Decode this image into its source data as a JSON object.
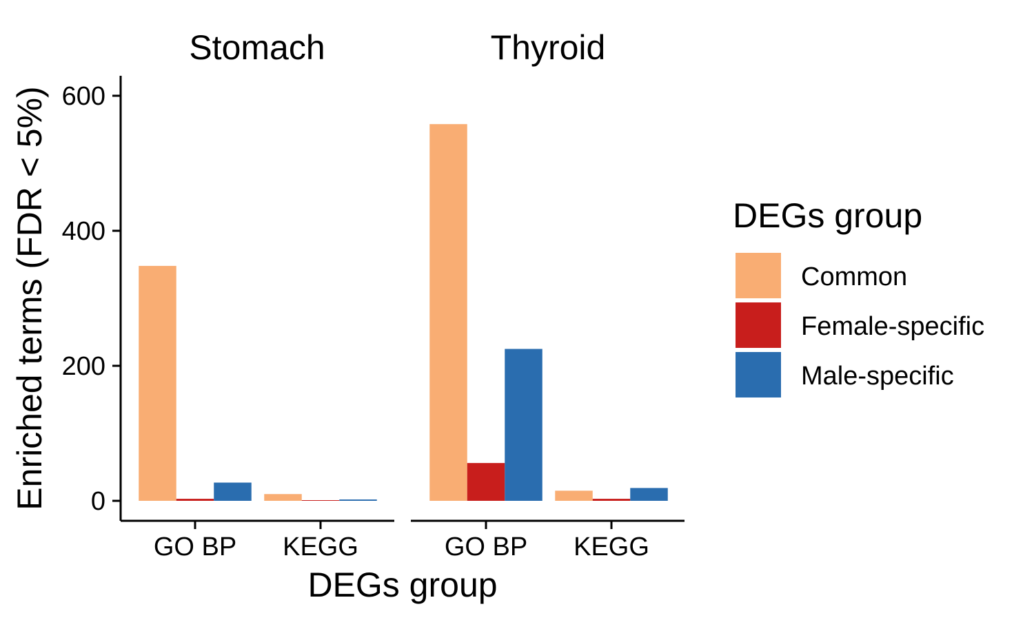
{
  "chart_data": {
    "type": "bar",
    "facets": [
      "Stomach",
      "Thyroid"
    ],
    "categories": [
      "GO BP",
      "KEGG"
    ],
    "xlabel": "DEGs group",
    "ylabel": "Enriched terms (FDR < 5%)",
    "ylim": [
      -30,
      630
    ],
    "yticks": [
      0,
      200,
      400,
      600
    ],
    "grid": false,
    "legend": {
      "title": "DEGs group",
      "placement": "right"
    },
    "series": [
      {
        "name": "Common",
        "color": "#F9AD73",
        "values": {
          "Stomach": [
            348,
            10
          ],
          "Thyroid": [
            558,
            15
          ]
        }
      },
      {
        "name": "Female-specific",
        "color": "#C81E1C",
        "values": {
          "Stomach": [
            3,
            1
          ],
          "Thyroid": [
            56,
            3
          ]
        }
      },
      {
        "name": "Male-specific",
        "color": "#2A6DAF",
        "values": {
          "Stomach": [
            27,
            2
          ],
          "Thyroid": [
            225,
            19
          ]
        }
      }
    ]
  }
}
